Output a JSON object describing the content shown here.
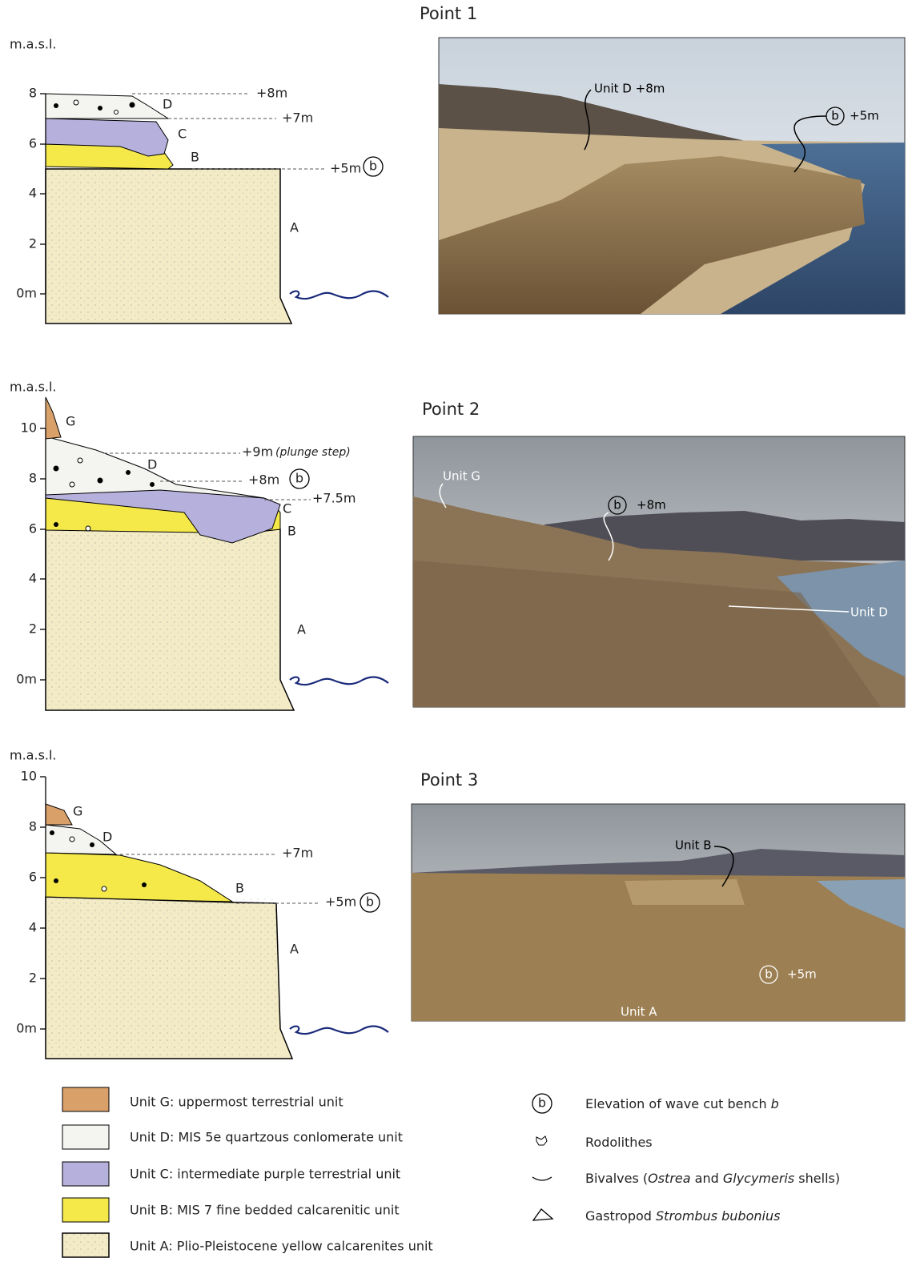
{
  "panels": [
    {
      "title": "Point 1",
      "column": {
        "axis_label": "m.a.s.l.",
        "ticks": [
          "0m",
          "2",
          "4",
          "6",
          "8"
        ],
        "units": [
          "D",
          "C",
          "B",
          "A"
        ],
        "levels": [
          "+8m",
          "+7m",
          "+5m"
        ],
        "bench": "b"
      },
      "photo_labels": [
        "Unit D +8m",
        "b",
        "+5m"
      ]
    },
    {
      "title": "Point 2",
      "column": {
        "axis_label": "m.a.s.l.",
        "ticks": [
          "0m",
          "2",
          "4",
          "6",
          "8",
          "10"
        ],
        "units": [
          "G",
          "D",
          "C",
          "B",
          "A"
        ],
        "levels": [
          "+9m",
          "(plunge step)",
          "+8m",
          "+7.5m"
        ],
        "bench": "b"
      },
      "photo_labels": [
        "Unit G",
        "b",
        "+8m",
        "Unit D"
      ]
    },
    {
      "title": "Point 3",
      "column": {
        "axis_label": "m.a.s.l.",
        "ticks": [
          "0m",
          "2",
          "4",
          "6",
          "8",
          "10"
        ],
        "units": [
          "G",
          "D",
          "B",
          "A"
        ],
        "levels": [
          "+7m",
          "+5m"
        ],
        "bench": "b"
      },
      "photo_labels": [
        "Unit B",
        "b",
        "+5m",
        "Unit A"
      ]
    }
  ],
  "legend": {
    "units": [
      "Unit G: uppermost terrestrial unit",
      "Unit D: MIS 5e quartzous conlomerate unit",
      "Unit C: intermediate purple terrestrial unit",
      "Unit B: MIS 7 fine bedded calcarenitic unit",
      "Unit A: Plio-Pleistocene yellow calcarenites unit"
    ],
    "symbol_glyph": "b",
    "symbols": [
      {
        "parts": [
          "Elevation of wave cut bench ",
          "b"
        ]
      },
      {
        "parts": [
          "Rodolithes"
        ]
      },
      {
        "parts": [
          "Bivalves (",
          "Ostrea",
          " and ",
          "Glycymeris",
          " shells)"
        ]
      },
      {
        "parts": [
          "Gastropod ",
          "Strombus bubonius"
        ]
      }
    ]
  }
}
